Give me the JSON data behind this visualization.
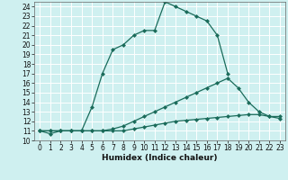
{
  "title": "",
  "xlabel": "Humidex (Indice chaleur)",
  "ylabel": "",
  "xlim": [
    -0.5,
    23.5
  ],
  "ylim": [
    10,
    24.5
  ],
  "xticks": [
    0,
    1,
    2,
    3,
    4,
    5,
    6,
    7,
    8,
    9,
    10,
    11,
    12,
    13,
    14,
    15,
    16,
    17,
    18,
    19,
    20,
    21,
    22,
    23
  ],
  "yticks": [
    10,
    11,
    12,
    13,
    14,
    15,
    16,
    17,
    18,
    19,
    20,
    21,
    22,
    23,
    24
  ],
  "bg_color": "#cff0f0",
  "line_color": "#1a6b5a",
  "grid_color": "#ffffff",
  "line1_x": [
    0,
    1,
    2,
    3,
    4,
    5,
    6,
    7,
    8,
    9,
    10,
    11,
    12,
    13,
    14,
    15,
    16,
    17,
    18
  ],
  "line1_y": [
    11.0,
    10.7,
    11.0,
    11.0,
    11.0,
    13.5,
    17.0,
    19.5,
    20.0,
    21.0,
    21.5,
    21.5,
    24.5,
    24.0,
    23.5,
    23.0,
    22.5,
    21.0,
    17.0
  ],
  "line2_x": [
    0,
    1,
    2,
    3,
    4,
    5,
    6,
    7,
    8,
    9,
    10,
    11,
    12,
    13,
    14,
    15,
    16,
    17,
    18,
    19,
    20,
    21,
    22,
    23
  ],
  "line2_y": [
    11.0,
    11.0,
    11.0,
    11.0,
    11.0,
    11.0,
    11.0,
    11.2,
    11.5,
    12.0,
    12.5,
    13.0,
    13.5,
    14.0,
    14.5,
    15.0,
    15.5,
    16.0,
    16.5,
    15.5,
    14.0,
    13.0,
    12.5,
    12.5
  ],
  "line3_x": [
    0,
    1,
    2,
    3,
    4,
    5,
    6,
    7,
    8,
    9,
    10,
    11,
    12,
    13,
    14,
    15,
    16,
    17,
    18,
    19,
    20,
    21,
    22,
    23
  ],
  "line3_y": [
    11.0,
    11.0,
    11.0,
    11.0,
    11.0,
    11.0,
    11.0,
    11.0,
    11.0,
    11.2,
    11.4,
    11.6,
    11.8,
    12.0,
    12.1,
    12.2,
    12.3,
    12.4,
    12.5,
    12.6,
    12.7,
    12.7,
    12.5,
    12.3
  ],
  "markersize": 2.5,
  "linewidth": 0.9,
  "tick_fontsize": 5.5,
  "xlabel_fontsize": 6.5
}
